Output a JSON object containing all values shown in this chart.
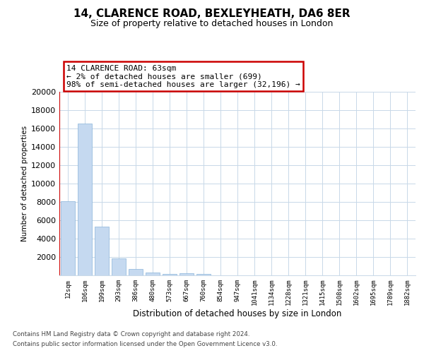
{
  "title1": "14, CLARENCE ROAD, BEXLEYHEATH, DA6 8ER",
  "title2": "Size of property relative to detached houses in London",
  "xlabel": "Distribution of detached houses by size in London",
  "ylabel": "Number of detached properties",
  "categories": [
    "12sqm",
    "106sqm",
    "199sqm",
    "293sqm",
    "386sqm",
    "480sqm",
    "573sqm",
    "667sqm",
    "760sqm",
    "854sqm",
    "947sqm",
    "1041sqm",
    "1134sqm",
    "1228sqm",
    "1321sqm",
    "1415sqm",
    "1508sqm",
    "1602sqm",
    "1695sqm",
    "1789sqm",
    "1882sqm"
  ],
  "values": [
    8100,
    16500,
    5300,
    1850,
    700,
    320,
    190,
    200,
    130,
    0,
    0,
    0,
    0,
    0,
    0,
    0,
    0,
    0,
    0,
    0,
    0
  ],
  "bar_color": "#c5d9f0",
  "bar_edge_color": "#8ab4d9",
  "highlight_color": "#cc0000",
  "property_line_x": -0.5,
  "annotation_text_line1": "14 CLARENCE ROAD: 63sqm",
  "annotation_text_line2": "← 2% of detached houses are smaller (699)",
  "annotation_text_line3": "98% of semi-detached houses are larger (32,196) →",
  "footnote1": "Contains HM Land Registry data © Crown copyright and database right 2024.",
  "footnote2": "Contains public sector information licensed under the Open Government Licence v3.0.",
  "ylim": [
    0,
    20000
  ],
  "yticks": [
    0,
    2000,
    4000,
    6000,
    8000,
    10000,
    12000,
    14000,
    16000,
    18000,
    20000
  ],
  "background_color": "#ffffff",
  "grid_color": "#c8d8e8"
}
